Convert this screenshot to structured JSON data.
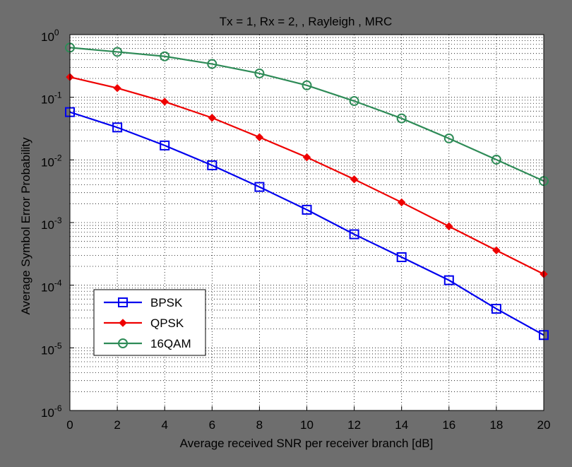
{
  "chart_data": {
    "type": "line",
    "title": "Tx = 1, Rx = 2, ,  Rayleigh , MRC",
    "xlabel": "Average received SNR per receiver branch [dB]",
    "ylabel": "Average Symbol Error Probability",
    "x": [
      0,
      2,
      4,
      6,
      8,
      10,
      12,
      14,
      16,
      18,
      20
    ],
    "xlim": [
      0,
      20
    ],
    "ylim": [
      1e-06,
      1
    ],
    "yscale": "log",
    "x_ticks": [
      "0",
      "2",
      "4",
      "6",
      "8",
      "10",
      "12",
      "14",
      "16",
      "18",
      "20"
    ],
    "y_ticks": [
      {
        "base": "10",
        "exp": "0",
        "value": 1
      },
      {
        "base": "10",
        "exp": "-1",
        "value": 0.1
      },
      {
        "base": "10",
        "exp": "-2",
        "value": 0.01
      },
      {
        "base": "10",
        "exp": "-3",
        "value": 0.001
      },
      {
        "base": "10",
        "exp": "-4",
        "value": 0.0001
      },
      {
        "base": "10",
        "exp": "-5",
        "value": 1e-05
      },
      {
        "base": "10",
        "exp": "-6",
        "value": 1e-06
      }
    ],
    "grid": true,
    "legend_position": "bottom-left",
    "series": [
      {
        "name": "BPSK",
        "color": "#0000ee",
        "marker": "square",
        "values": [
          0.058,
          0.033,
          0.017,
          0.0082,
          0.0037,
          0.0016,
          0.00065,
          0.00028,
          0.00012,
          4.2e-05,
          1.6e-05
        ]
      },
      {
        "name": "QPSK",
        "color": "#ee0000",
        "marker": "diamond",
        "values": [
          0.21,
          0.14,
          0.085,
          0.047,
          0.023,
          0.011,
          0.0049,
          0.0021,
          0.00087,
          0.00036,
          0.00015
        ]
      },
      {
        "name": "16QAM",
        "color": "#2e8b57",
        "marker": "circle",
        "values": [
          0.62,
          0.53,
          0.45,
          0.34,
          0.24,
          0.155,
          0.087,
          0.046,
          0.022,
          0.0101,
          0.0046
        ]
      }
    ]
  }
}
